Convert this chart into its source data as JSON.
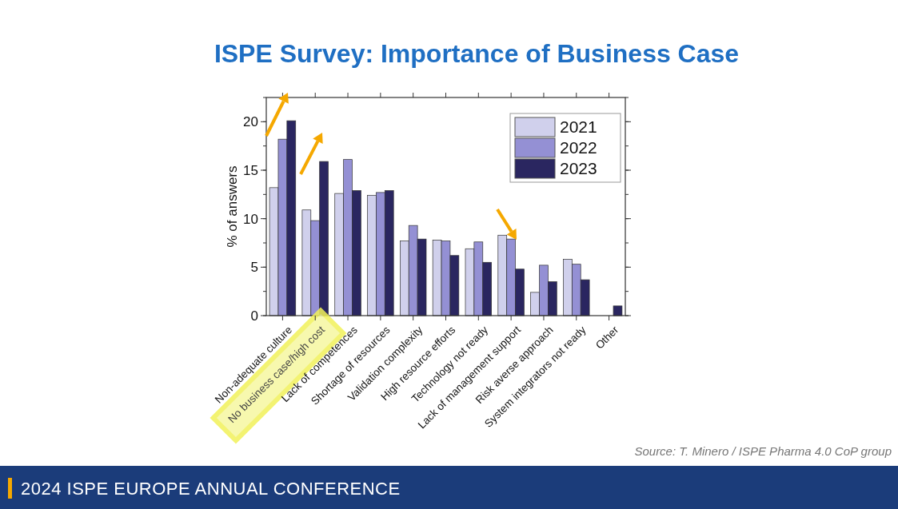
{
  "chart_data": {
    "type": "bar",
    "title": "ISPE Survey: Importance of Business Case",
    "ylabel": "% of answers",
    "categories": [
      "Non-adequate culture",
      "No business case/high cost",
      "Lack of competences",
      "Shortage of resources",
      "Validation complexity",
      "High resource efforts",
      "Technology not ready",
      "Lack of management support",
      "Risk averse approach",
      "System integrators not ready",
      "Other"
    ],
    "series": [
      {
        "name": "2021",
        "color": "#d0d0ec",
        "values": [
          13.2,
          10.9,
          12.6,
          12.4,
          7.7,
          7.8,
          6.9,
          8.3,
          2.4,
          5.8,
          null
        ]
      },
      {
        "name": "2022",
        "color": "#9490d4",
        "values": [
          18.2,
          9.8,
          16.1,
          12.7,
          9.3,
          7.7,
          7.6,
          7.9,
          5.2,
          5.3,
          null
        ]
      },
      {
        "name": "2023",
        "color": "#2a2660",
        "values": [
          20.1,
          15.9,
          12.9,
          12.9,
          7.9,
          6.2,
          5.5,
          4.8,
          3.5,
          3.7,
          1.0
        ]
      }
    ],
    "ylim": [
      0,
      22.5
    ],
    "yticks": [
      0,
      5,
      10,
      15,
      20
    ],
    "grid": false,
    "legend": "top right",
    "annotations": [
      "Source: T. Minero / ISPE Pharma 4.0 CoP group",
      "2024 ISPE EUROPE ANNUAL CONFERENCE"
    ]
  }
}
